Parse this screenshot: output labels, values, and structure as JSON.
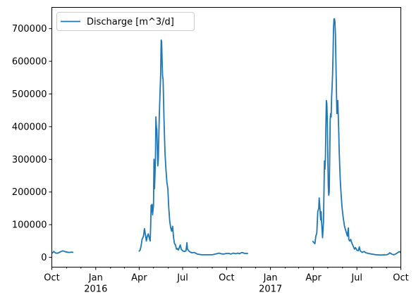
{
  "chart_data": {
    "type": "line",
    "title": "",
    "xlabel": "",
    "ylabel": "",
    "x_range": [
      "2015-10-01",
      "2017-10-01"
    ],
    "ylim": [
      -30000,
      765000
    ],
    "grid": false,
    "legend_position": "top-left",
    "series_color": "#1f77b4",
    "y_ticks": [
      {
        "value": 0,
        "label": "0"
      },
      {
        "value": 100000,
        "label": "100000"
      },
      {
        "value": 200000,
        "label": "200000"
      },
      {
        "value": 300000,
        "label": "300000"
      },
      {
        "value": 400000,
        "label": "400000"
      },
      {
        "value": 500000,
        "label": "500000"
      },
      {
        "value": 600000,
        "label": "600000"
      },
      {
        "value": 700000,
        "label": "700000"
      }
    ],
    "x_major_ticks": [
      {
        "date": "2015-10-01",
        "label": "Oct",
        "sublabel": ""
      },
      {
        "date": "2016-01-01",
        "label": "Jan",
        "sublabel": "2016"
      },
      {
        "date": "2016-04-01",
        "label": "Apr",
        "sublabel": ""
      },
      {
        "date": "2016-07-01",
        "label": "Jul",
        "sublabel": ""
      },
      {
        "date": "2016-10-01",
        "label": "Oct",
        "sublabel": ""
      },
      {
        "date": "2017-01-01",
        "label": "Jan",
        "sublabel": "2017"
      },
      {
        "date": "2017-04-01",
        "label": "Apr",
        "sublabel": ""
      },
      {
        "date": "2017-07-01",
        "label": "Jul",
        "sublabel": ""
      },
      {
        "date": "2017-10-01",
        "label": "Oct",
        "sublabel": ""
      }
    ],
    "x_minor_ticks": [
      "2015-11-01",
      "2015-12-01",
      "2016-02-01",
      "2016-03-01",
      "2016-05-01",
      "2016-06-01",
      "2016-08-01",
      "2016-09-01",
      "2016-11-01",
      "2016-12-01",
      "2017-02-01",
      "2017-03-01",
      "2017-05-01",
      "2017-06-01",
      "2017-08-01",
      "2017-09-01"
    ],
    "series": [
      {
        "name": "Discharge [m^3/d]",
        "segments": [
          [
            [
              "2015-10-01",
              12000
            ],
            [
              "2015-10-05",
              18000
            ],
            [
              "2015-10-09",
              13000
            ],
            [
              "2015-10-14",
              13000
            ],
            [
              "2015-10-19",
              17000
            ],
            [
              "2015-10-24",
              20000
            ],
            [
              "2015-10-30",
              17000
            ],
            [
              "2015-11-06",
              15000
            ],
            [
              "2015-11-12",
              16000
            ],
            [
              "2015-11-15",
              15000
            ]
          ],
          [
            [
              "2016-03-31",
              18000
            ],
            [
              "2016-04-03",
              22000
            ],
            [
              "2016-04-05",
              35000
            ],
            [
              "2016-04-07",
              55000
            ],
            [
              "2016-04-10",
              65000
            ],
            [
              "2016-04-12",
              88000
            ],
            [
              "2016-04-14",
              70000
            ],
            [
              "2016-04-16",
              50000
            ],
            [
              "2016-04-18",
              65000
            ],
            [
              "2016-04-20",
              72000
            ],
            [
              "2016-04-22",
              60000
            ],
            [
              "2016-04-24",
              50000
            ],
            [
              "2016-04-25",
              95000
            ],
            [
              "2016-04-26",
              160000
            ],
            [
              "2016-04-27",
              140000
            ],
            [
              "2016-04-28",
              162000
            ],
            [
              "2016-04-29",
              130000
            ],
            [
              "2016-05-01",
              160000
            ],
            [
              "2016-05-02",
              300000
            ],
            [
              "2016-05-03",
              210000
            ],
            [
              "2016-05-04",
              250000
            ],
            [
              "2016-05-05",
              300000
            ],
            [
              "2016-05-06",
              430000
            ],
            [
              "2016-05-07",
              400000
            ],
            [
              "2016-05-08",
              390000
            ],
            [
              "2016-05-09",
              330000
            ],
            [
              "2016-05-10",
              280000
            ],
            [
              "2016-05-11",
              300000
            ],
            [
              "2016-05-13",
              430000
            ],
            [
              "2016-05-15",
              520000
            ],
            [
              "2016-05-16",
              560000
            ],
            [
              "2016-05-17",
              665000
            ],
            [
              "2016-05-18",
              660000
            ],
            [
              "2016-05-19",
              600000
            ],
            [
              "2016-05-20",
              555000
            ],
            [
              "2016-05-21",
              545000
            ],
            [
              "2016-05-23",
              420000
            ],
            [
              "2016-05-25",
              320000
            ],
            [
              "2016-05-27",
              270000
            ],
            [
              "2016-05-29",
              230000
            ],
            [
              "2016-05-31",
              210000
            ],
            [
              "2016-06-02",
              150000
            ],
            [
              "2016-06-04",
              110000
            ],
            [
              "2016-06-06",
              90000
            ],
            [
              "2016-06-08",
              80000
            ],
            [
              "2016-06-10",
              95000
            ],
            [
              "2016-06-12",
              60000
            ],
            [
              "2016-06-14",
              42000
            ],
            [
              "2016-06-16",
              38000
            ],
            [
              "2016-06-18",
              25000
            ],
            [
              "2016-06-20",
              27000
            ],
            [
              "2016-06-22",
              22000
            ],
            [
              "2016-06-24",
              30000
            ],
            [
              "2016-06-26",
              38000
            ],
            [
              "2016-06-28",
              25000
            ],
            [
              "2016-07-01",
              20000
            ],
            [
              "2016-07-05",
              18000
            ],
            [
              "2016-07-08",
              20000
            ],
            [
              "2016-07-10",
              45000
            ],
            [
              "2016-07-11",
              25000
            ],
            [
              "2016-07-15",
              18000
            ],
            [
              "2016-07-20",
              14000
            ],
            [
              "2016-07-25",
              15000
            ],
            [
              "2016-08-01",
              10000
            ],
            [
              "2016-08-10",
              8000
            ],
            [
              "2016-08-20",
              8000
            ],
            [
              "2016-09-01",
              8000
            ],
            [
              "2016-09-10",
              11000
            ],
            [
              "2016-09-15",
              13000
            ],
            [
              "2016-09-20",
              11000
            ],
            [
              "2016-09-25",
              10000
            ],
            [
              "2016-10-01",
              12000
            ],
            [
              "2016-10-06",
              12000
            ],
            [
              "2016-10-10",
              10000
            ],
            [
              "2016-10-15",
              13000
            ],
            [
              "2016-10-20",
              11000
            ],
            [
              "2016-10-25",
              13000
            ],
            [
              "2016-10-28",
              11000
            ],
            [
              "2016-11-02",
              15000
            ],
            [
              "2016-11-08",
              12000
            ],
            [
              "2016-11-15",
              12000
            ]
          ],
          [
            [
              "2017-03-30",
              50000
            ],
            [
              "2017-04-02",
              45000
            ],
            [
              "2017-04-04",
              42000
            ],
            [
              "2017-04-06",
              65000
            ],
            [
              "2017-04-08",
              75000
            ],
            [
              "2017-04-10",
              140000
            ],
            [
              "2017-04-12",
              150000
            ],
            [
              "2017-04-13",
              182000
            ],
            [
              "2017-04-15",
              140000
            ],
            [
              "2017-04-16",
              115000
            ],
            [
              "2017-04-17",
              140000
            ],
            [
              "2017-04-18",
              110000
            ],
            [
              "2017-04-20",
              60000
            ],
            [
              "2017-04-22",
              110000
            ],
            [
              "2017-04-23",
              200000
            ],
            [
              "2017-04-24",
              295000
            ],
            [
              "2017-04-25",
              270000
            ],
            [
              "2017-04-26",
              300000
            ],
            [
              "2017-04-27",
              400000
            ],
            [
              "2017-04-28",
              480000
            ],
            [
              "2017-04-29",
              470000
            ],
            [
              "2017-04-30",
              420000
            ],
            [
              "2017-05-01",
              320000
            ],
            [
              "2017-05-02",
              220000
            ],
            [
              "2017-05-03",
              190000
            ],
            [
              "2017-05-04",
              200000
            ],
            [
              "2017-05-05",
              300000
            ],
            [
              "2017-05-06",
              420000
            ],
            [
              "2017-05-07",
              440000
            ],
            [
              "2017-05-08",
              430000
            ],
            [
              "2017-05-09",
              490000
            ],
            [
              "2017-05-10",
              520000
            ],
            [
              "2017-05-11",
              560000
            ],
            [
              "2017-05-12",
              620000
            ],
            [
              "2017-05-13",
              700000
            ],
            [
              "2017-05-14",
              730000
            ],
            [
              "2017-05-15",
              730000
            ],
            [
              "2017-05-16",
              720000
            ],
            [
              "2017-05-17",
              680000
            ],
            [
              "2017-05-18",
              600000
            ],
            [
              "2017-05-19",
              520000
            ],
            [
              "2017-05-20",
              440000
            ],
            [
              "2017-05-21",
              470000
            ],
            [
              "2017-05-22",
              480000
            ],
            [
              "2017-05-23",
              430000
            ],
            [
              "2017-05-24",
              380000
            ],
            [
              "2017-05-25",
              320000
            ],
            [
              "2017-05-27",
              240000
            ],
            [
              "2017-05-29",
              190000
            ],
            [
              "2017-05-31",
              150000
            ],
            [
              "2017-06-02",
              125000
            ],
            [
              "2017-06-05",
              95000
            ],
            [
              "2017-06-07",
              85000
            ],
            [
              "2017-06-09",
              75000
            ],
            [
              "2017-06-11",
              65000
            ],
            [
              "2017-06-13",
              90000
            ],
            [
              "2017-06-14",
              55000
            ],
            [
              "2017-06-16",
              50000
            ],
            [
              "2017-06-18",
              55000
            ],
            [
              "2017-06-20",
              45000
            ],
            [
              "2017-06-23",
              35000
            ],
            [
              "2017-06-26",
              25000
            ],
            [
              "2017-06-28",
              30000
            ],
            [
              "2017-07-01",
              22000
            ],
            [
              "2017-07-04",
              20000
            ],
            [
              "2017-07-06",
              32000
            ],
            [
              "2017-07-08",
              20000
            ],
            [
              "2017-07-12",
              15000
            ],
            [
              "2017-07-16",
              18000
            ],
            [
              "2017-07-20",
              14000
            ],
            [
              "2017-07-25",
              12000
            ],
            [
              "2017-08-01",
              10000
            ],
            [
              "2017-08-10",
              8000
            ],
            [
              "2017-08-20",
              7000
            ],
            [
              "2017-09-01",
              8000
            ],
            [
              "2017-09-05",
              10000
            ],
            [
              "2017-09-08",
              14000
            ],
            [
              "2017-09-12",
              10000
            ],
            [
              "2017-09-16",
              8000
            ],
            [
              "2017-09-20",
              10000
            ],
            [
              "2017-09-24",
              14000
            ],
            [
              "2017-09-28",
              18000
            ],
            [
              "2017-10-01",
              14000
            ]
          ]
        ]
      }
    ]
  }
}
